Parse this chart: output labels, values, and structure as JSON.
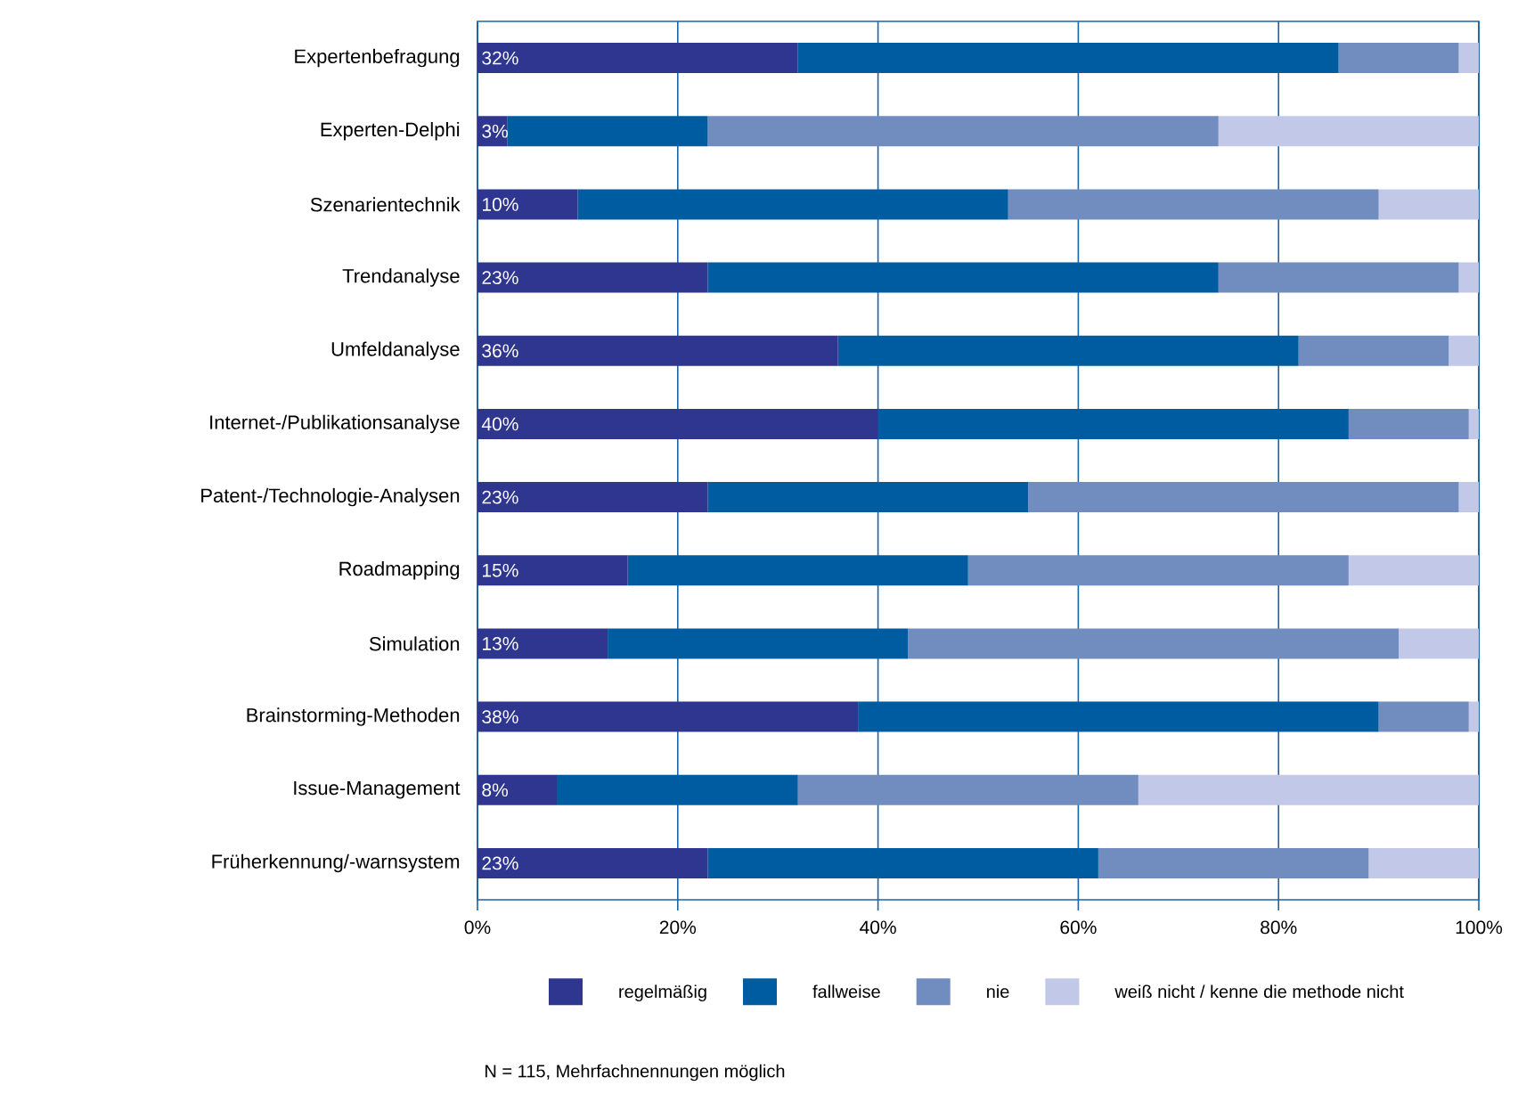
{
  "chart_data": {
    "type": "bar",
    "orientation": "horizontal",
    "stacked": true,
    "categories": [
      "Expertenbefragung",
      "Experten-Delphi",
      "Szenarientechnik",
      "Trendanalyse",
      "Umfeldanalyse",
      "Internet-/Publikationsanalyse",
      "Patent-/Technologie-Analysen",
      "Roadmapping",
      "Simulation",
      "Brainstorming-Methoden",
      "Issue-Management",
      "Früherkennung/-warnsystem"
    ],
    "series": [
      {
        "name": "regelmäßig",
        "color": "#2e368f",
        "values": [
          32,
          3,
          10,
          23,
          36,
          40,
          23,
          15,
          13,
          38,
          8,
          23
        ],
        "value_labels": [
          "32%",
          "3%",
          "10%",
          "23%",
          "36%",
          "40%",
          "23%",
          "15%",
          "13%",
          "38%",
          "8%",
          "23%"
        ]
      },
      {
        "name": "fallweise",
        "color": "#005ca0",
        "values": [
          54,
          20,
          43,
          51,
          46,
          47,
          32,
          34,
          30,
          52,
          24,
          39
        ]
      },
      {
        "name": "nie",
        "color": "#718dc0",
        "values": [
          12,
          51,
          37,
          24,
          15,
          12,
          43,
          38,
          49,
          9,
          34,
          27
        ]
      },
      {
        "name": "weiß nicht / kenne die methode nicht",
        "color": "#c2c9e8",
        "values": [
          2,
          26,
          10,
          2,
          3,
          1,
          2,
          13,
          8,
          1,
          34,
          11
        ]
      }
    ],
    "xlim": [
      0,
      100
    ],
    "xticks": [
      {
        "value": 0,
        "label": "0%"
      },
      {
        "value": 20,
        "label": "20%"
      },
      {
        "value": 40,
        "label": "40%"
      },
      {
        "value": 60,
        "label": "60%"
      },
      {
        "value": 80,
        "label": "80%"
      },
      {
        "value": 100,
        "label": "100%"
      }
    ],
    "grid": "x",
    "legend": "bottom",
    "annotations": [
      "N = 115,  Mehrfachnennungen möglich"
    ]
  }
}
